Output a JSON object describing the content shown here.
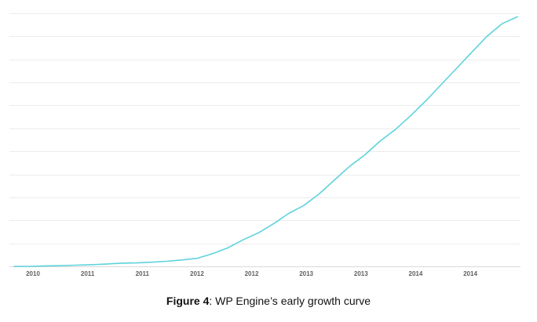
{
  "chart_data": {
    "type": "line",
    "title": "",
    "xlabel": "",
    "ylabel": "",
    "x_tick_labels": [
      "2010",
      "2011",
      "2011",
      "2012",
      "2012",
      "2013",
      "2013",
      "2014",
      "2014"
    ],
    "y_tick_count": 12,
    "ylim": [
      0,
      11
    ],
    "grid": true,
    "legend": "none",
    "series": [
      {
        "color": "#5fd3dc",
        "values": [
          0.0,
          0.0,
          0.02,
          0.03,
          0.05,
          0.07,
          0.1,
          0.14,
          0.15,
          0.18,
          0.22,
          0.28,
          0.35,
          0.55,
          0.8,
          1.15,
          1.45,
          1.85,
          2.3,
          2.65,
          3.15,
          3.75,
          4.35,
          4.85,
          5.45,
          5.95,
          6.55,
          7.2,
          7.9,
          8.6,
          9.3,
          10.0,
          10.55,
          10.85
        ]
      }
    ]
  },
  "caption": {
    "lead": "Figure 4",
    "text": ": WP Engine’s early growth curve"
  }
}
